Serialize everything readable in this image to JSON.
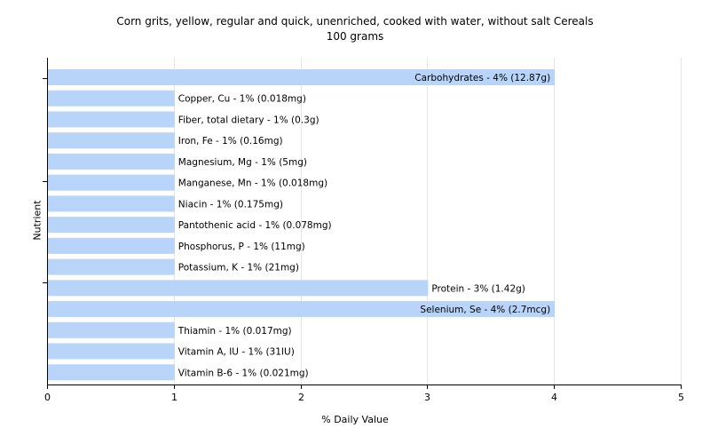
{
  "chart_data": {
    "type": "bar",
    "orientation": "horizontal",
    "title": "Corn grits, yellow, regular and quick, unenriched, cooked with water, without salt Cereals",
    "subtitle": "100 grams",
    "xlabel": "% Daily Value",
    "ylabel": "Nutrient",
    "xlim": [
      0,
      5
    ],
    "xticks": [
      "0",
      "1",
      "2",
      "3",
      "4",
      "5"
    ],
    "grid": true,
    "bar_color": "#b8d4f8",
    "categories": [
      "Carbohydrates",
      "Copper, Cu",
      "Fiber, total dietary",
      "Iron, Fe",
      "Magnesium, Mg",
      "Manganese, Mn",
      "Niacin",
      "Pantothenic acid",
      "Phosphorus, P",
      "Potassium, K",
      "Protein",
      "Selenium, Se",
      "Thiamin",
      "Vitamin A, IU",
      "Vitamin B-6"
    ],
    "values": [
      4,
      1,
      1,
      1,
      1,
      1,
      1,
      1,
      1,
      1,
      3,
      4,
      1,
      1,
      1
    ],
    "labels": [
      "Carbohydrates - 4% (12.87g)",
      "Copper, Cu - 1% (0.018mg)",
      "Fiber, total dietary - 1% (0.3g)",
      "Iron, Fe - 1% (0.16mg)",
      "Magnesium, Mg - 1% (5mg)",
      "Manganese, Mn - 1% (0.018mg)",
      "Niacin - 1% (0.175mg)",
      "Pantothenic acid - 1% (0.078mg)",
      "Phosphorus, P - 1% (11mg)",
      "Potassium, K - 1% (21mg)",
      "Protein - 3% (1.42g)",
      "Selenium, Se - 4% (2.7mcg)",
      "Thiamin - 1% (0.017mg)",
      "Vitamin A, IU - 1% (31IU)",
      "Vitamin B-6 - 1% (0.021mg)"
    ]
  }
}
